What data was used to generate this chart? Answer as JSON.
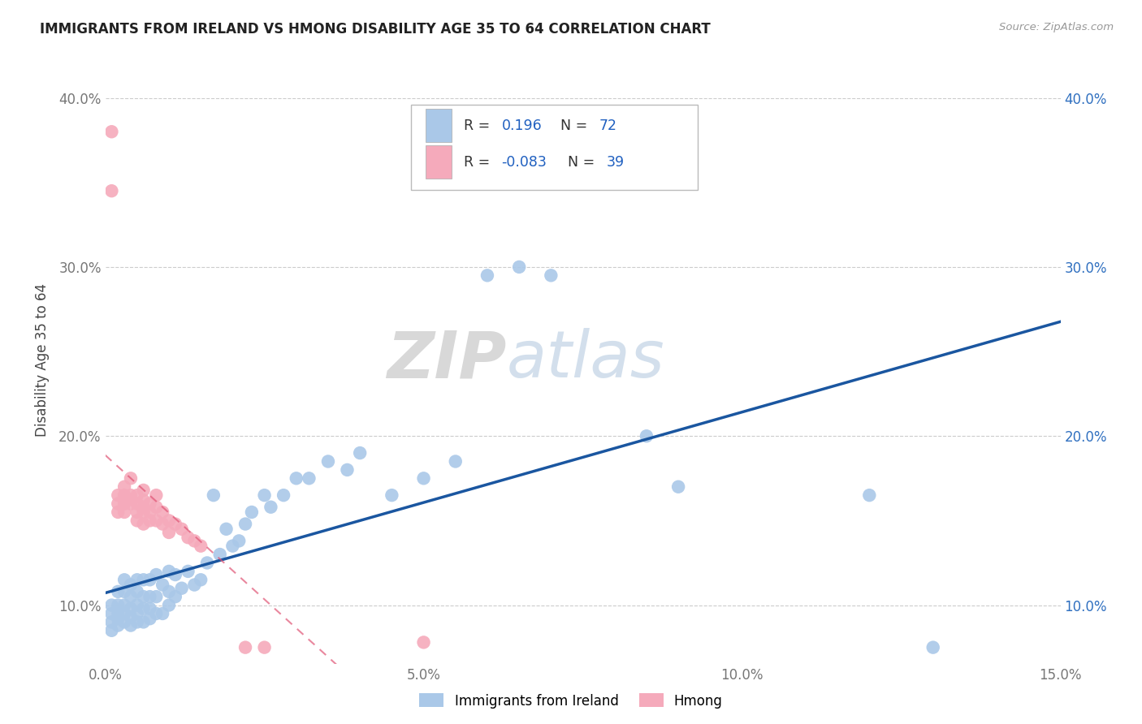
{
  "title": "IMMIGRANTS FROM IRELAND VS HMONG DISABILITY AGE 35 TO 64 CORRELATION CHART",
  "source": "Source: ZipAtlas.com",
  "ylabel": "Disability Age 35 to 64",
  "xlim": [
    0.0,
    0.15
  ],
  "ylim": [
    0.065,
    0.425
  ],
  "yticks": [
    0.1,
    0.2,
    0.3,
    0.4
  ],
  "ytick_labels": [
    "10.0%",
    "20.0%",
    "30.0%",
    "40.0%"
  ],
  "xticks": [
    0.0,
    0.05,
    0.1,
    0.15
  ],
  "xtick_labels": [
    "0.0%",
    "5.0%",
    "10.0%",
    "15.0%"
  ],
  "blue_R": "0.196",
  "blue_N": "72",
  "pink_R": "-0.083",
  "pink_N": "39",
  "blue_color": "#aac8e8",
  "blue_line_color": "#1a56a0",
  "pink_color": "#f5aabb",
  "pink_line_color": "#e05575",
  "background_color": "#ffffff",
  "legend_label_blue": "Immigrants from Ireland",
  "legend_label_pink": "Hmong",
  "watermark": "ZIPatlas",
  "blue_x": [
    0.001,
    0.001,
    0.001,
    0.001,
    0.002,
    0.002,
    0.002,
    0.002,
    0.002,
    0.003,
    0.003,
    0.003,
    0.003,
    0.003,
    0.004,
    0.004,
    0.004,
    0.004,
    0.004,
    0.005,
    0.005,
    0.005,
    0.005,
    0.005,
    0.006,
    0.006,
    0.006,
    0.006,
    0.007,
    0.007,
    0.007,
    0.007,
    0.008,
    0.008,
    0.008,
    0.009,
    0.009,
    0.01,
    0.01,
    0.01,
    0.011,
    0.011,
    0.012,
    0.013,
    0.014,
    0.015,
    0.016,
    0.017,
    0.018,
    0.019,
    0.02,
    0.021,
    0.022,
    0.023,
    0.025,
    0.026,
    0.028,
    0.03,
    0.032,
    0.035,
    0.038,
    0.04,
    0.045,
    0.05,
    0.055,
    0.06,
    0.065,
    0.07,
    0.085,
    0.09,
    0.12,
    0.13
  ],
  "blue_y": [
    0.085,
    0.09,
    0.095,
    0.1,
    0.088,
    0.092,
    0.095,
    0.1,
    0.108,
    0.09,
    0.095,
    0.1,
    0.108,
    0.115,
    0.088,
    0.093,
    0.098,
    0.105,
    0.112,
    0.09,
    0.095,
    0.1,
    0.108,
    0.115,
    0.09,
    0.098,
    0.105,
    0.115,
    0.092,
    0.098,
    0.105,
    0.115,
    0.095,
    0.105,
    0.118,
    0.095,
    0.112,
    0.1,
    0.108,
    0.12,
    0.105,
    0.118,
    0.11,
    0.12,
    0.112,
    0.115,
    0.125,
    0.165,
    0.13,
    0.145,
    0.135,
    0.138,
    0.148,
    0.155,
    0.165,
    0.158,
    0.165,
    0.175,
    0.175,
    0.185,
    0.18,
    0.19,
    0.165,
    0.175,
    0.185,
    0.295,
    0.3,
    0.295,
    0.2,
    0.17,
    0.165,
    0.075
  ],
  "pink_x": [
    0.001,
    0.001,
    0.002,
    0.002,
    0.002,
    0.003,
    0.003,
    0.003,
    0.003,
    0.004,
    0.004,
    0.004,
    0.005,
    0.005,
    0.005,
    0.005,
    0.006,
    0.006,
    0.006,
    0.006,
    0.006,
    0.007,
    0.007,
    0.007,
    0.008,
    0.008,
    0.008,
    0.009,
    0.009,
    0.01,
    0.01,
    0.011,
    0.012,
    0.013,
    0.014,
    0.015,
    0.022,
    0.025,
    0.05
  ],
  "pink_y": [
    0.38,
    0.345,
    0.165,
    0.16,
    0.155,
    0.17,
    0.165,
    0.16,
    0.155,
    0.175,
    0.165,
    0.16,
    0.165,
    0.16,
    0.155,
    0.15,
    0.168,
    0.162,
    0.158,
    0.155,
    0.148,
    0.16,
    0.155,
    0.15,
    0.165,
    0.158,
    0.15,
    0.155,
    0.148,
    0.15,
    0.143,
    0.148,
    0.145,
    0.14,
    0.138,
    0.135,
    0.075,
    0.075,
    0.078
  ]
}
